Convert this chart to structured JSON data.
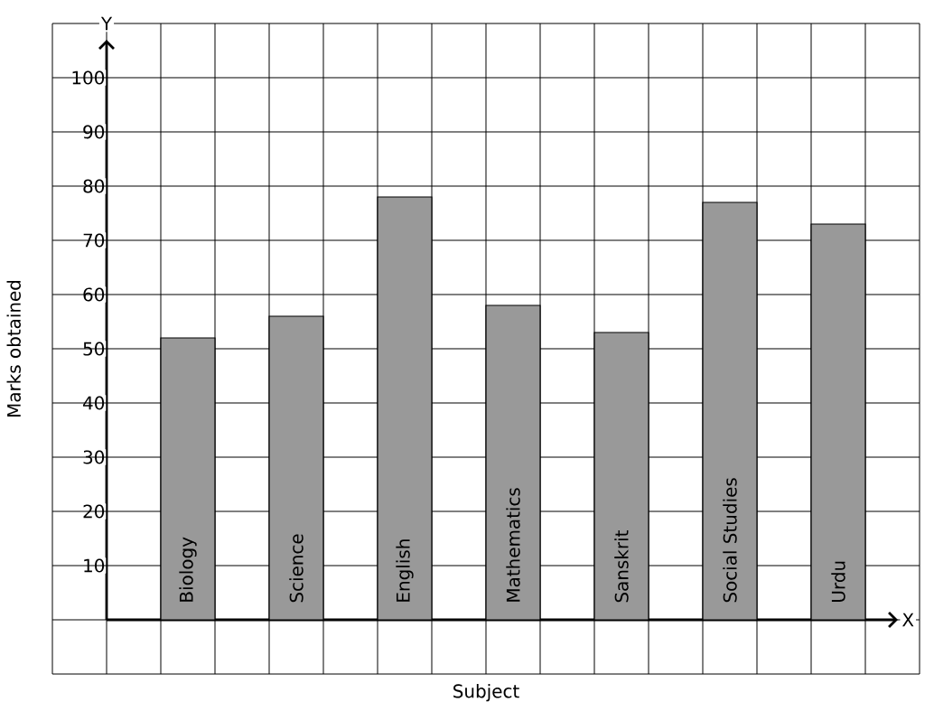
{
  "chart_data": {
    "type": "bar",
    "xlabel": "Subject",
    "ylabel": "Marks obtained",
    "categories": [
      "Biology",
      "Science",
      "English",
      "Mathematics",
      "Sanskrit",
      "Social Studies",
      "Urdu"
    ],
    "values": [
      52,
      56,
      78,
      58,
      53,
      77,
      73
    ],
    "color": "#999999",
    "ylim": [
      -10,
      110
    ],
    "yticks": [
      10,
      20,
      30,
      40,
      50,
      60,
      70,
      80,
      90,
      100
    ],
    "grid": true,
    "annotations": [
      "X",
      "Y"
    ]
  }
}
